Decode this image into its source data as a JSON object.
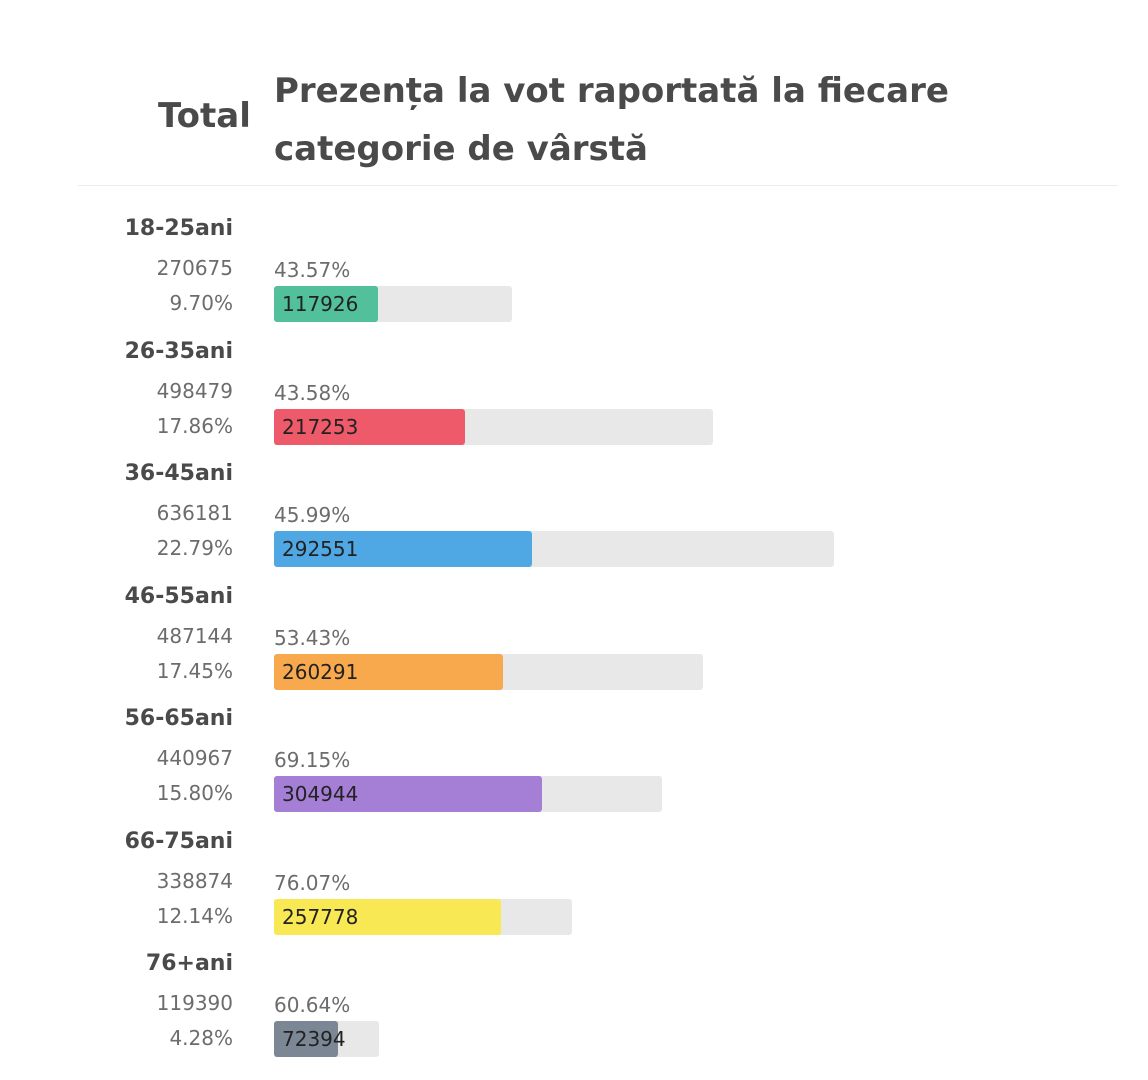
{
  "header": {
    "total_title": "Total",
    "chart_title": "Prezența la vot raportată la fiecare categorie de vârstă"
  },
  "chart_data": {
    "type": "bar",
    "categories": [
      "18-25ani",
      "26-35ani",
      "36-45ani",
      "46-55ani",
      "56-65ani",
      "66-75ani",
      "76+ani"
    ],
    "totals": [
      270675,
      498479,
      636181,
      487144,
      440967,
      338874,
      119390
    ],
    "totals_text": [
      "270675",
      "498479",
      "636181",
      "487144",
      "440967",
      "338874",
      "119390"
    ],
    "share_of_total": [
      "9.70%",
      "17.86%",
      "22.79%",
      "17.45%",
      "15.80%",
      "12.14%",
      "4.28%"
    ],
    "turnout_percent": [
      "43.57%",
      "43.58%",
      "45.99%",
      "53.43%",
      "69.15%",
      "76.07%",
      "60.64%"
    ],
    "voters": [
      117926,
      217253,
      292551,
      260291,
      304944,
      257778,
      72394
    ],
    "voters_text": [
      "117926",
      "217253",
      "292551",
      "260291",
      "304944",
      "257778",
      "72394"
    ],
    "colors": [
      "#52c09a",
      "#ee5a6a",
      "#4fa8e3",
      "#f8a94e",
      "#a57fd6",
      "#f8e954",
      "#7b8794"
    ],
    "track_color": "#e8e8e8"
  }
}
